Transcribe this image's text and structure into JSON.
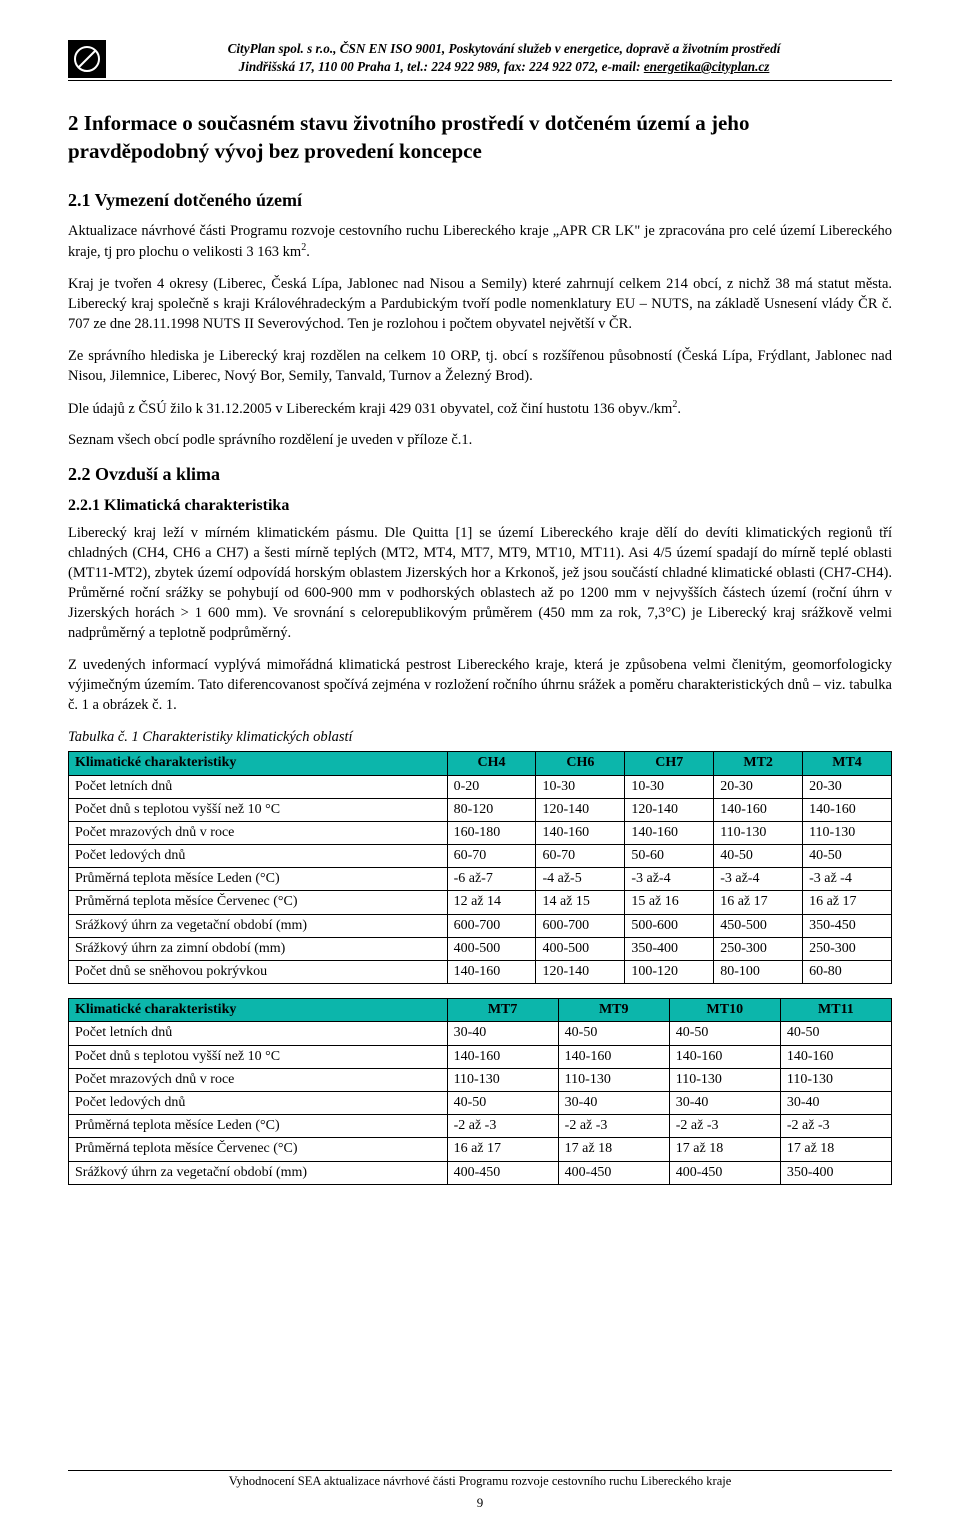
{
  "header": {
    "line1": "CityPlan spol. s r.o., ČSN EN ISO 9001, Poskytování služeb v energetice, dopravě a životním prostředí",
    "line2_pre": "Jindřišská 17, 110 00 Praha 1, tel.: 224 922 989, fax: 224 922 072, e-mail: ",
    "email": "energetika@cityplan.cz"
  },
  "section2": {
    "title": "2 Informace o současném stavu životního prostředí v dotčeném území a jeho pravděpodobný vývoj bez provedení koncepce",
    "s21_title": "2.1 Vymezení dotčeného území",
    "p1_a": "Aktualizace návrhové části Programu rozvoje cestovního ruchu Libereckého kraje „APR CR LK\" je zpracována pro celé území Libereckého kraje, tj pro plochu o velikosti 3 163 km",
    "p1_b": ".",
    "p2": "Kraj je tvořen 4 okresy (Liberec, Česká Lípa, Jablonec nad Nisou a Semily) které zahrnují celkem 214 obcí, z nichž 38 má statut města. Liberecký kraj společně s kraji Královéhradeckým a Pardubickým tvoří podle nomenklatury EU – NUTS, na základě Usnesení vlády ČR č. 707 ze dne 28.11.1998 NUTS II Severovýchod. Ten je rozlohou i počtem obyvatel největší v ČR.",
    "p3": "Ze správního hlediska je Liberecký kraj rozdělen na celkem 10 ORP, tj. obcí s rozšířenou působností (Česká Lípa, Frýdlant, Jablonec nad Nisou, Jilemnice, Liberec, Nový Bor, Semily, Tanvald, Turnov a Železný Brod).",
    "p4_a": "Dle údajů z ČSÚ žilo k 31.12.2005 v Libereckém kraji 429 031 obyvatel, což činí hustotu 136 obyv./km",
    "p4_b": ".",
    "p5": "Seznam všech obcí podle správního rozdělení je uveden v příloze č.1.",
    "s22_title": "2.2 Ovzduší a klima",
    "s221_title": "2.2.1 Klimatická charakteristika",
    "p6": "Liberecký kraj leží v mírném klimatickém pásmu. Dle Quitta [1] se území Libereckého kraje dělí do devíti klimatických regionů tří chladných (CH4, CH6 a CH7) a šesti mírně teplých (MT2, MT4, MT7, MT9, MT10, MT11). Asi 4/5 území spadají do mírně teplé oblasti (MT11-MT2), zbytek území odpovídá horským oblastem Jizerských hor a Krkonoš, jež jsou součástí chladné klimatické oblasti (CH7-CH4). Průměrné roční srážky se pohybují od 600-900 mm v podhorských oblastech až po 1200 mm v nejvyšších částech území (roční úhrn v Jizerských horách > 1 600 mm). Ve srovnání s celorepublikovým průměrem (450 mm za rok, 7,3°C) je Liberecký kraj srážkově velmi nadprůměrný a teplotně podprůměrný.",
    "p7": "Z uvedených informací vyplývá mimořádná klimatická pestrost Libereckého kraje, která je způsobena velmi členitým, geomorfologicky výjimečným územím. Tato diferencovanost spočívá zejména v rozložení ročního úhrnu srážek a poměru charakteristických dnů – viz. tabulka č. 1 a obrázek č. 1.",
    "caption1": "Tabulka č. 1 Charakteristiky klimatických oblastí"
  },
  "table1": {
    "header": [
      "Klimatické charakteristiky",
      "CH4",
      "CH6",
      "CH7",
      "MT2",
      "MT4"
    ],
    "rows": [
      [
        "Počet letních dnů",
        "0-20",
        "10-30",
        "10-30",
        "20-30",
        "20-30"
      ],
      [
        "Počet dnů s teplotou vyšší než 10 °C",
        "80-120",
        "120-140",
        "120-140",
        "140-160",
        "140-160"
      ],
      [
        "Počet mrazových dnů v roce",
        "160-180",
        "140-160",
        "140-160",
        "110-130",
        "110-130"
      ],
      [
        "Počet ledových dnů",
        "60-70",
        "60-70",
        "50-60",
        "40-50",
        "40-50"
      ],
      [
        "Průměrná teplota měsíce Leden (°C)",
        "-6 až-7",
        "-4 až-5",
        "-3 až-4",
        "-3 až-4",
        "-3 až -4"
      ],
      [
        "Průměrná teplota měsíce Červenec (°C)",
        "12 až 14",
        "14 až 15",
        "15 až 16",
        "16 až 17",
        "16 až 17"
      ],
      [
        "Srážkový úhrn za vegetační období (mm)",
        "600-700",
        "600-700",
        "500-600",
        "450-500",
        "350-450"
      ],
      [
        "Srážkový úhrn za zimní období (mm)",
        "400-500",
        "400-500",
        "350-400",
        "250-300",
        "250-300"
      ],
      [
        "Počet dnů se sněhovou pokrývkou",
        "140-160",
        "120-140",
        "100-120",
        "80-100",
        "60-80"
      ]
    ]
  },
  "table2": {
    "header": [
      "Klimatické charakteristiky",
      "MT7",
      "MT9",
      "MT10",
      "MT11"
    ],
    "rows": [
      [
        "Počet letních dnů",
        "30-40",
        "40-50",
        "40-50",
        "40-50"
      ],
      [
        "Počet dnů s teplotou vyšší než 10 °C",
        "140-160",
        "140-160",
        "140-160",
        "140-160"
      ],
      [
        "Počet mrazových dnů v roce",
        "110-130",
        "110-130",
        "110-130",
        "110-130"
      ],
      [
        "Počet ledových dnů",
        "40-50",
        "30-40",
        "30-40",
        "30-40"
      ],
      [
        "Průměrná teplota měsíce Leden (°C)",
        "-2 až -3",
        "-2 až -3",
        "-2 až -3",
        "-2 až -3"
      ],
      [
        "Průměrná teplota měsíce Červenec (°C)",
        "16 až 17",
        "17 až 18",
        "17 až 18",
        "17 až 18"
      ],
      [
        "Srážkový úhrn za vegetační období (mm)",
        "400-450",
        "400-450",
        "400-450",
        "350-400"
      ]
    ]
  },
  "footer": {
    "text": "Vyhodnocení SEA aktualizace návrhové části Programu rozvoje cestovního ruchu Libereckého kraje",
    "page": "9"
  },
  "colors": {
    "table_header_bg": "#0cb6ab"
  }
}
